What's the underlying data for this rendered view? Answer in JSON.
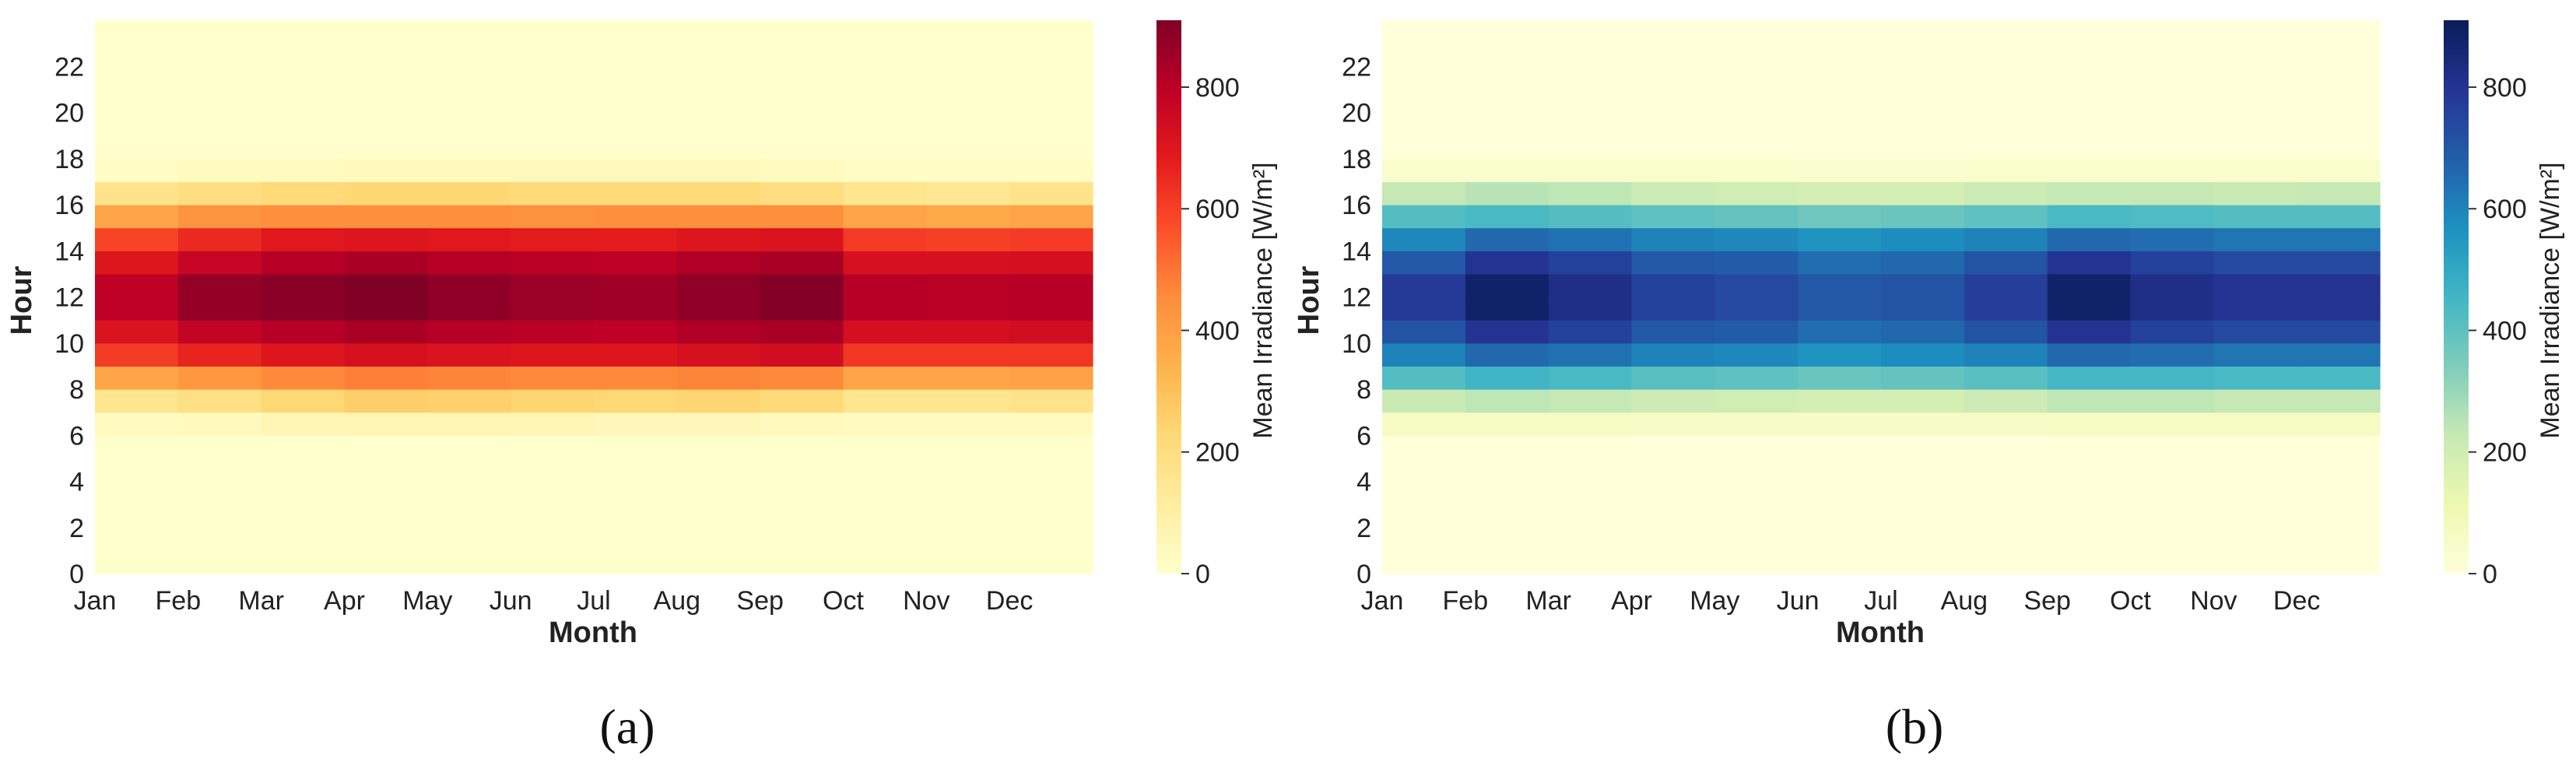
{
  "figure": {
    "panel_labels": [
      "(a)",
      "(b)"
    ],
    "colormap_names": [
      "YlOrRd",
      "YlGnBu"
    ]
  },
  "chart_data": [
    {
      "type": "heatmap",
      "panel": "(a)",
      "colormap": "YlOrRd",
      "xlabel": "Month",
      "ylabel": "Hour",
      "x_categories": [
        "Jan",
        "Feb",
        "Mar",
        "Apr",
        "May",
        "Jun",
        "Jul",
        "Aug",
        "Sep",
        "Oct",
        "Nov",
        "Dec"
      ],
      "x_tick_labels": [
        "Jan",
        "Feb",
        "Mar",
        "Apr",
        "May",
        "Jun",
        "Jul",
        "Aug",
        "Sep",
        "Oct",
        "Nov",
        "Dec"
      ],
      "y_tick_labels": [
        "0",
        "2",
        "4",
        "6",
        "8",
        "10",
        "12",
        "14",
        "16",
        "18",
        "20",
        "22"
      ],
      "y_range": [
        0,
        24
      ],
      "colorbar": {
        "label": "Mean Irradiance [W/m²]",
        "range": [
          0,
          910
        ],
        "ticks": [
          "0",
          "200",
          "400",
          "600",
          "800"
        ]
      },
      "columns": [
        {
          "month": "Jan",
          "hours_6_to_17": [
            30,
            160,
            380,
            610,
            710,
            790,
            790,
            700,
            590,
            380,
            170,
            20
          ]
        },
        {
          "month": "Feb",
          "hours_6_to_17": [
            40,
            190,
            420,
            660,
            780,
            870,
            870,
            770,
            650,
            430,
            200,
            30
          ]
        },
        {
          "month": "Mar",
          "hours_6_to_17": [
            60,
            230,
            460,
            700,
            810,
            890,
            890,
            810,
            690,
            450,
            220,
            30
          ]
        },
        {
          "month": "Apr",
          "hours_6_to_17": [
            70,
            260,
            480,
            720,
            830,
            910,
            910,
            830,
            700,
            450,
            230,
            40
          ]
        },
        {
          "month": "May",
          "hours_6_to_17": [
            70,
            250,
            470,
            710,
            810,
            880,
            880,
            810,
            690,
            450,
            230,
            40
          ]
        },
        {
          "month": "Jun",
          "hours_6_to_17": [
            60,
            240,
            460,
            700,
            800,
            860,
            860,
            800,
            680,
            440,
            220,
            40
          ]
        },
        {
          "month": "Jul",
          "hours_6_to_17": [
            50,
            230,
            460,
            700,
            790,
            850,
            850,
            790,
            680,
            450,
            220,
            40
          ]
        },
        {
          "month": "Aug",
          "hours_6_to_17": [
            50,
            240,
            470,
            720,
            820,
            880,
            880,
            820,
            700,
            450,
            220,
            40
          ]
        },
        {
          "month": "Sep",
          "hours_6_to_17": [
            40,
            220,
            460,
            740,
            830,
            900,
            900,
            830,
            710,
            450,
            200,
            30
          ]
        },
        {
          "month": "Oct",
          "hours_6_to_17": [
            30,
            160,
            380,
            620,
            730,
            810,
            810,
            720,
            610,
            380,
            160,
            20
          ]
        },
        {
          "month": "Nov",
          "hours_6_to_17": [
            30,
            160,
            380,
            620,
            730,
            800,
            800,
            720,
            600,
            370,
            150,
            20
          ]
        },
        {
          "month": "Dec",
          "hours_6_to_17": [
            30,
            170,
            390,
            620,
            740,
            810,
            810,
            730,
            610,
            380,
            170,
            20
          ]
        }
      ]
    },
    {
      "type": "heatmap",
      "panel": "(b)",
      "colormap": "YlGnBu",
      "xlabel": "Month",
      "ylabel": "Hour",
      "x_categories": [
        "Jan",
        "Feb",
        "Mar",
        "Apr",
        "May",
        "Jun",
        "Jul",
        "Aug",
        "Sep",
        "Oct",
        "Nov",
        "Dec"
      ],
      "x_tick_labels": [
        "Jan",
        "Feb",
        "Mar",
        "Apr",
        "May",
        "Jun",
        "Jul",
        "Aug",
        "Sep",
        "Oct",
        "Nov",
        "Dec"
      ],
      "y_tick_labels": [
        "0",
        "2",
        "4",
        "6",
        "8",
        "10",
        "12",
        "14",
        "16",
        "18",
        "20",
        "22"
      ],
      "y_range": [
        0,
        24
      ],
      "colorbar": {
        "label": "Mean Irradiance [W/m²]",
        "range": [
          0,
          910
        ],
        "ticks": [
          "0",
          "200",
          "400",
          "600",
          "800"
        ]
      },
      "columns": [
        {
          "month": "Jan",
          "hours_6_to_17": [
            60,
            220,
            420,
            600,
            710,
            780,
            780,
            700,
            590,
            420,
            230,
            40
          ]
        },
        {
          "month": "Feb",
          "hours_6_to_17": [
            60,
            240,
            460,
            660,
            800,
            880,
            880,
            800,
            660,
            440,
            250,
            40
          ]
        },
        {
          "month": "Mar",
          "hours_6_to_17": [
            60,
            230,
            440,
            640,
            760,
            820,
            820,
            760,
            640,
            420,
            240,
            40
          ]
        },
        {
          "month": "Apr",
          "hours_6_to_17": [
            50,
            210,
            410,
            600,
            700,
            760,
            760,
            700,
            600,
            400,
            210,
            40
          ]
        },
        {
          "month": "May",
          "hours_6_to_17": [
            50,
            200,
            400,
            590,
            690,
            740,
            740,
            690,
            590,
            390,
            200,
            40
          ]
        },
        {
          "month": "Jun",
          "hours_6_to_17": [
            50,
            190,
            380,
            560,
            650,
            700,
            700,
            650,
            560,
            370,
            190,
            30
          ]
        },
        {
          "month": "Jul",
          "hours_6_to_17": [
            50,
            190,
            390,
            580,
            660,
            710,
            710,
            660,
            580,
            380,
            190,
            30
          ]
        },
        {
          "month": "Aug",
          "hours_6_to_17": [
            50,
            210,
            410,
            600,
            710,
            770,
            770,
            710,
            600,
            400,
            210,
            40
          ]
        },
        {
          "month": "Sep",
          "hours_6_to_17": [
            60,
            240,
            450,
            660,
            800,
            880,
            880,
            800,
            660,
            440,
            230,
            40
          ]
        },
        {
          "month": "Oct",
          "hours_6_to_17": [
            60,
            240,
            450,
            650,
            760,
            820,
            820,
            760,
            650,
            430,
            230,
            40
          ]
        },
        {
          "month": "Nov",
          "hours_6_to_17": [
            60,
            230,
            440,
            630,
            740,
            800,
            800,
            740,
            630,
            420,
            220,
            40
          ]
        },
        {
          "month": "Dec",
          "hours_6_to_17": [
            60,
            230,
            440,
            630,
            740,
            800,
            800,
            740,
            630,
            420,
            230,
            40
          ]
        }
      ]
    }
  ]
}
